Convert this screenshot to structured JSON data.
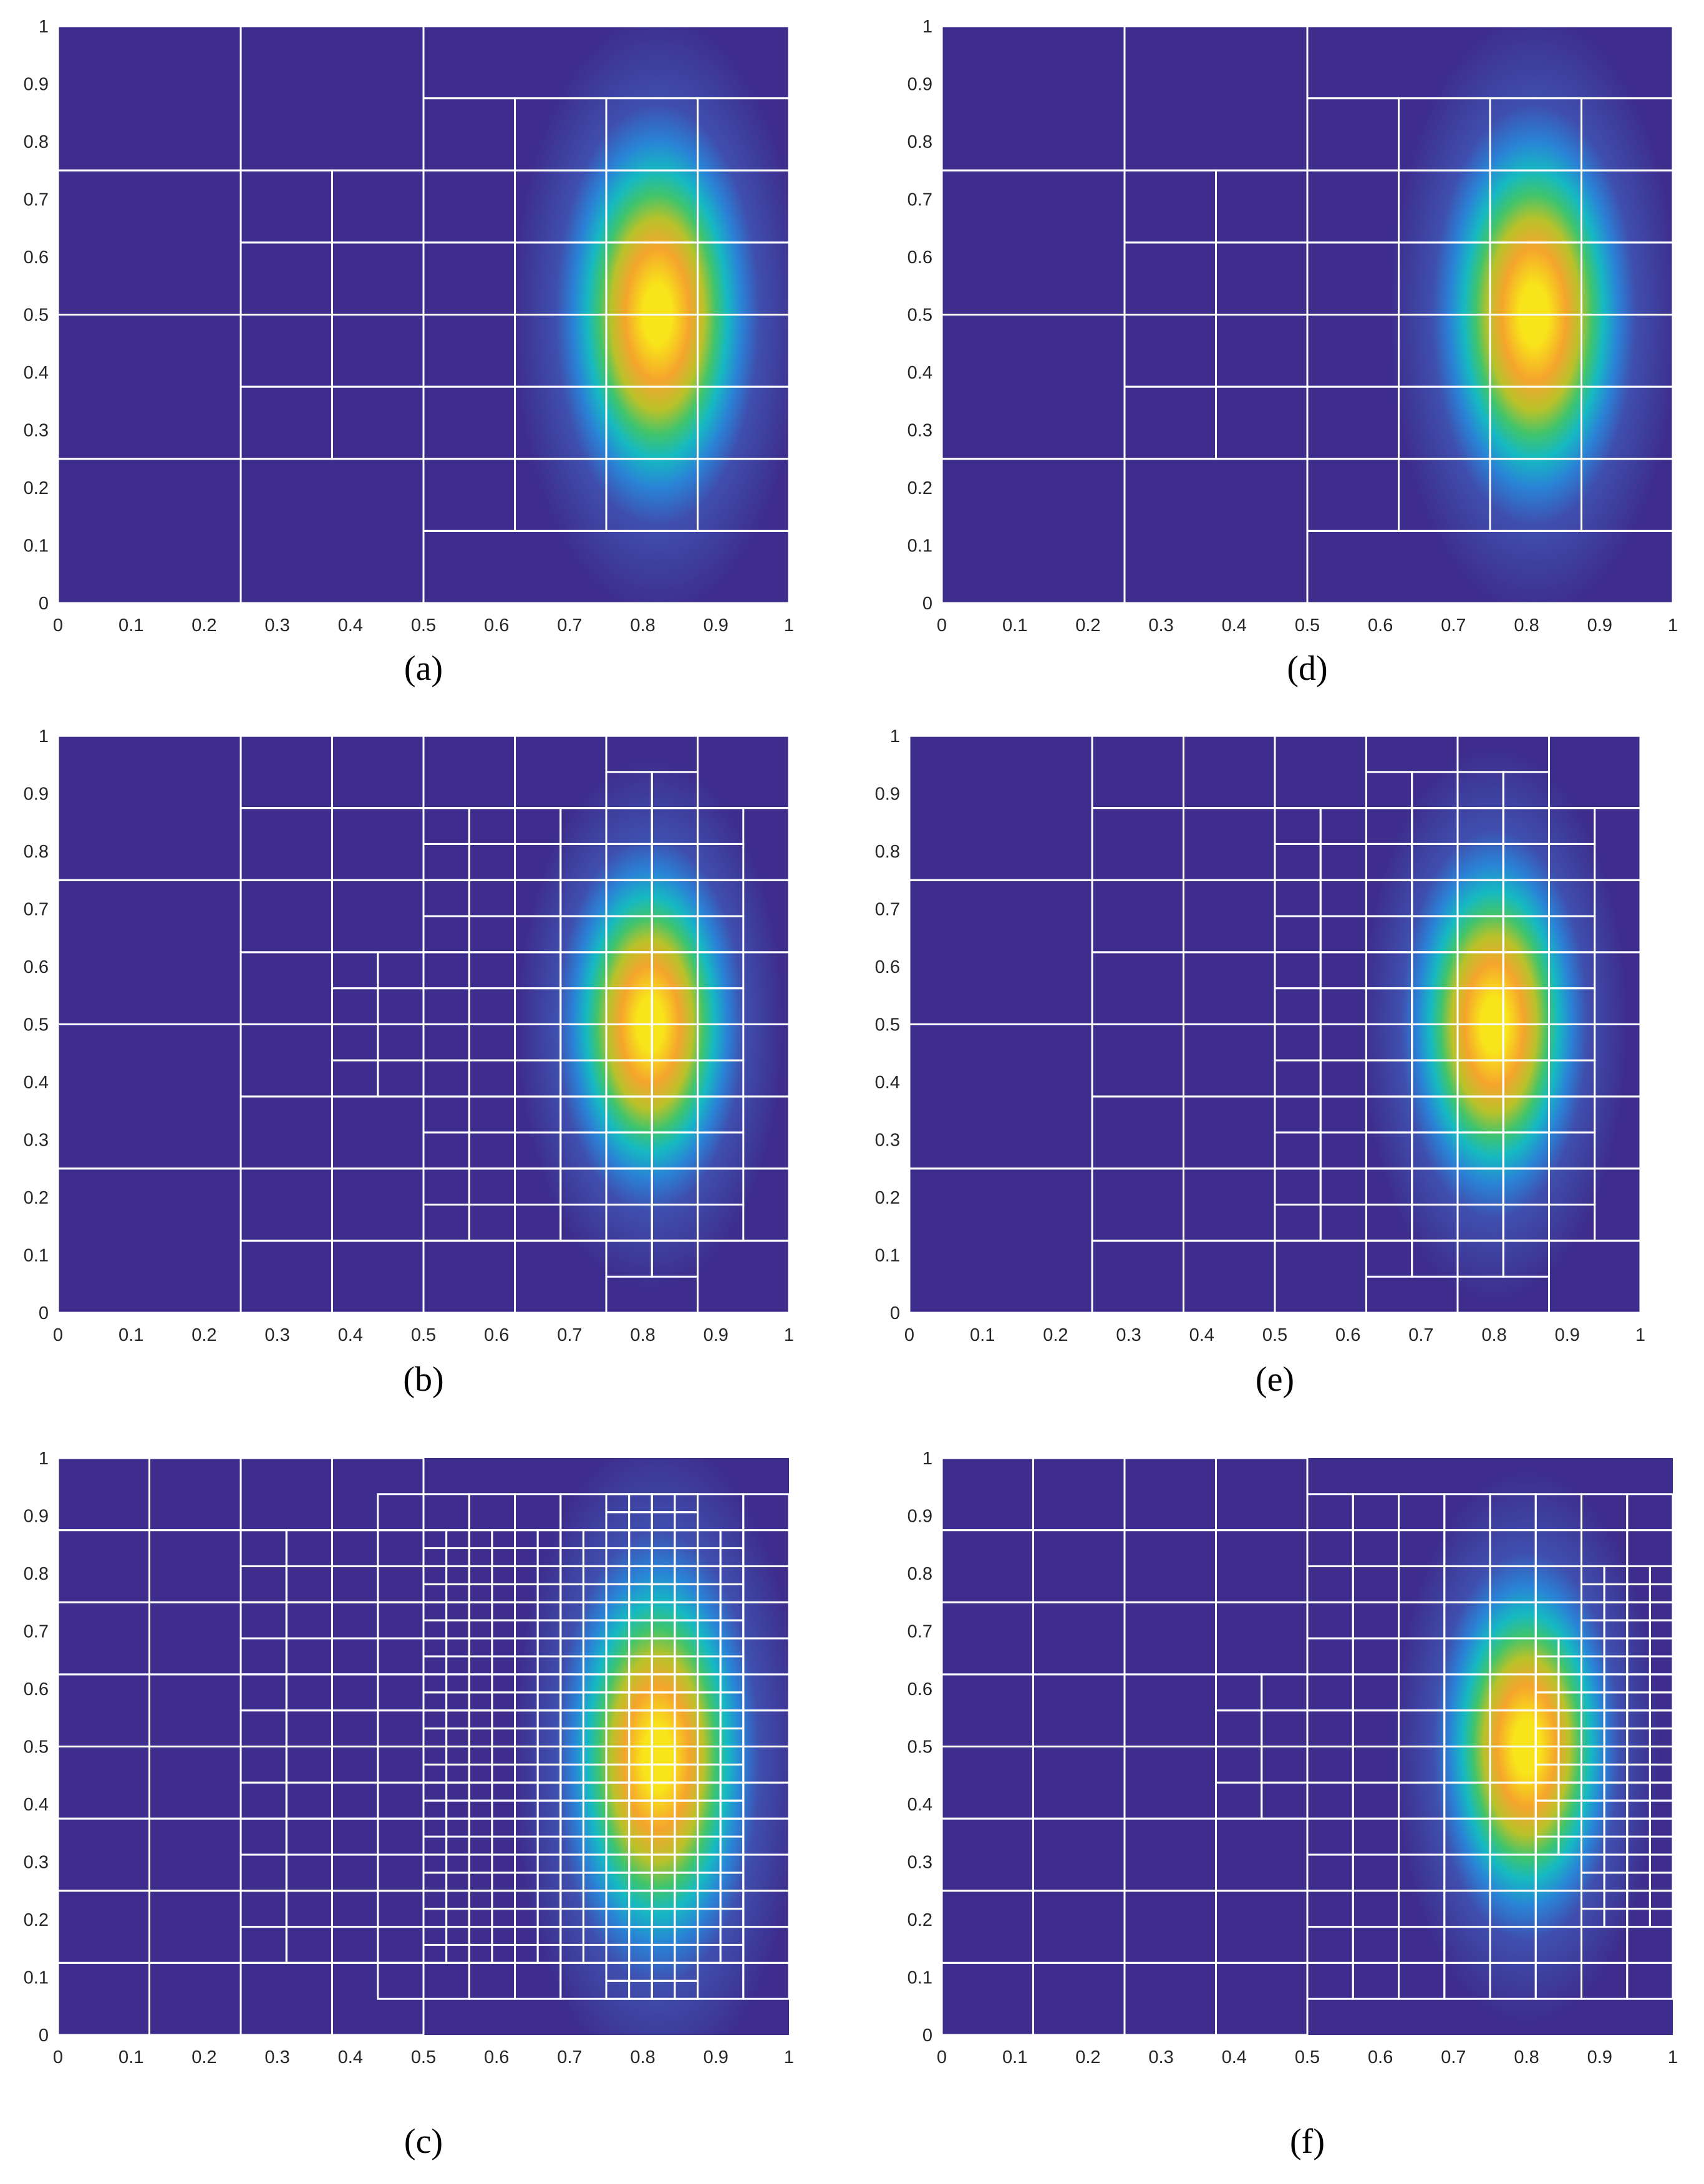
{
  "colormap": [
    "#3e2d8c",
    "#3f4fae",
    "#2a82d6",
    "#16b9c2",
    "#40c46c",
    "#b8c22a",
    "#f5a52c",
    "#f8e41a"
  ],
  "grid_line_color": "#ffffff",
  "chart_data": [
    {
      "type": "heatmap",
      "panel_label": "(a)",
      "xlim": [
        0,
        1
      ],
      "ylim": [
        0,
        1
      ],
      "x_ticks": [
        "0",
        "0.1",
        "0.2",
        "0.3",
        "0.4",
        "0.5",
        "0.6",
        "0.7",
        "0.8",
        "0.9",
        "1"
      ],
      "y_ticks": [
        "0",
        "0.1",
        "0.2",
        "0.3",
        "0.4",
        "0.5",
        "0.6",
        "0.7",
        "0.8",
        "0.9",
        "1"
      ],
      "field_peak": {
        "x": 0.82,
        "y": 0.5,
        "sigma_x": 0.12,
        "sigma_y": 0.26
      },
      "grid": "mesh-a",
      "cells": []
    },
    {
      "type": "heatmap",
      "panel_label": "(b)",
      "xlim": [
        0,
        1
      ],
      "ylim": [
        0,
        1
      ],
      "x_ticks": [
        "0",
        "0.1",
        "0.2",
        "0.3",
        "0.4",
        "0.5",
        "0.6",
        "0.7",
        "0.8",
        "0.9",
        "1"
      ],
      "y_ticks": [
        "0",
        "0.1",
        "0.2",
        "0.3",
        "0.4",
        "0.5",
        "0.6",
        "0.7",
        "0.8",
        "0.9",
        "1"
      ],
      "field_peak": {
        "x": 0.81,
        "y": 0.5,
        "sigma_x": 0.11,
        "sigma_y": 0.23
      },
      "grid": "mesh-b",
      "cells": []
    },
    {
      "type": "heatmap",
      "panel_label": "(c)",
      "xlim": [
        0,
        1
      ],
      "ylim": [
        0,
        1
      ],
      "x_ticks": [
        "0",
        "0.1",
        "0.2",
        "0.3",
        "0.4",
        "0.5",
        "0.6",
        "0.7",
        "0.8",
        "0.9",
        "1"
      ],
      "y_ticks": [
        "0",
        "0.1",
        "0.2",
        "0.3",
        "0.4",
        "0.5",
        "0.6",
        "0.7",
        "0.8",
        "0.9",
        "1"
      ],
      "field_peak": {
        "x": 0.82,
        "y": 0.48,
        "sigma_x": 0.12,
        "sigma_y": 0.28
      },
      "grid": "mesh-c",
      "cells": []
    },
    {
      "type": "heatmap",
      "panel_label": "(d)",
      "xlim": [
        0,
        1
      ],
      "ylim": [
        0,
        1
      ],
      "x_ticks": [
        "0",
        "0.1",
        "0.2",
        "0.3",
        "0.4",
        "0.5",
        "0.6",
        "0.7",
        "0.8",
        "0.9",
        "1"
      ],
      "y_ticks": [
        "0",
        "0.1",
        "0.2",
        "0.3",
        "0.4",
        "0.5",
        "0.6",
        "0.7",
        "0.8",
        "0.9",
        "1"
      ],
      "field_peak": {
        "x": 0.81,
        "y": 0.5,
        "sigma_x": 0.12,
        "sigma_y": 0.26
      },
      "grid": "mesh-d",
      "cells": []
    },
    {
      "type": "heatmap",
      "panel_label": "(e)",
      "xlim": [
        0,
        1
      ],
      "ylim": [
        0,
        1
      ],
      "x_ticks": [
        "0",
        "0.1",
        "0.2",
        "0.3",
        "0.4",
        "0.5",
        "0.6",
        "0.7",
        "0.8",
        "0.9",
        "1"
      ],
      "y_ticks": [
        "0",
        "0.1",
        "0.2",
        "0.3",
        "0.4",
        "0.5",
        "0.6",
        "0.7",
        "0.8",
        "0.9",
        "1"
      ],
      "field_peak": {
        "x": 0.8,
        "y": 0.5,
        "sigma_x": 0.11,
        "sigma_y": 0.24
      },
      "grid": "mesh-e",
      "cells": []
    },
    {
      "type": "heatmap",
      "panel_label": "(f)",
      "xlim": [
        0,
        1
      ],
      "ylim": [
        0,
        1
      ],
      "x_ticks": [
        "0",
        "0.1",
        "0.2",
        "0.3",
        "0.4",
        "0.5",
        "0.6",
        "0.7",
        "0.8",
        "0.9",
        "1"
      ],
      "y_ticks": [
        "0",
        "0.1",
        "0.2",
        "0.3",
        "0.4",
        "0.5",
        "0.6",
        "0.7",
        "0.8",
        "0.9",
        "1"
      ],
      "field_peak": {
        "x": 0.8,
        "y": 0.5,
        "sigma_x": 0.11,
        "sigma_y": 0.24
      },
      "grid": "mesh-f",
      "cells": []
    }
  ]
}
